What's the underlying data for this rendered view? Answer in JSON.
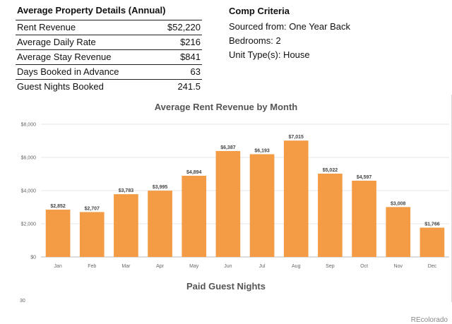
{
  "details": {
    "title": "Average Property Details (Annual)",
    "rows": [
      {
        "label": "Rent Revenue",
        "value": "$52,220"
      },
      {
        "label": "Average Daily Rate",
        "value": "$216"
      },
      {
        "label": "Average Stay Revenue",
        "value": "$841"
      },
      {
        "label": "Days Booked in Advance",
        "value": "63"
      },
      {
        "label": "Guest Nights Booked",
        "value": "241.5"
      }
    ]
  },
  "comp": {
    "title": "Comp Criteria",
    "sourced": "Sourced from: One Year Back",
    "bedrooms": "Bedrooms: 2",
    "unit_type": "Unit Type(s):  House"
  },
  "chart_data": [
    {
      "type": "bar",
      "title": "Average Rent Revenue by Month",
      "categories": [
        "Jan",
        "Feb",
        "Mar",
        "Apr",
        "May",
        "Jun",
        "Jul",
        "Aug",
        "Sep",
        "Oct",
        "Nov",
        "Dec"
      ],
      "values": [
        2852,
        2707,
        3783,
        3995,
        4894,
        6387,
        6193,
        7015,
        5022,
        4597,
        3008,
        1766
      ],
      "data_labels": [
        "$2,852",
        "$2,707",
        "$3,783",
        "$3,995",
        "$4,894",
        "$6,387",
        "$6,193",
        "$7,015",
        "$5,022",
        "$4,597",
        "$3,008",
        "$1,766"
      ],
      "y_ticks": [
        0,
        2000,
        4000,
        6000,
        8000
      ],
      "y_tick_labels": [
        "$0",
        "$2,000",
        "$4,000",
        "$6,000",
        "$8,000"
      ],
      "ylim": [
        0,
        8000
      ],
      "bar_color": "#f39c45",
      "grid": true
    },
    {
      "type": "bar",
      "title": "Paid Guest Nights",
      "partial_tick_label": "30"
    }
  ],
  "credit": "REcolorado"
}
